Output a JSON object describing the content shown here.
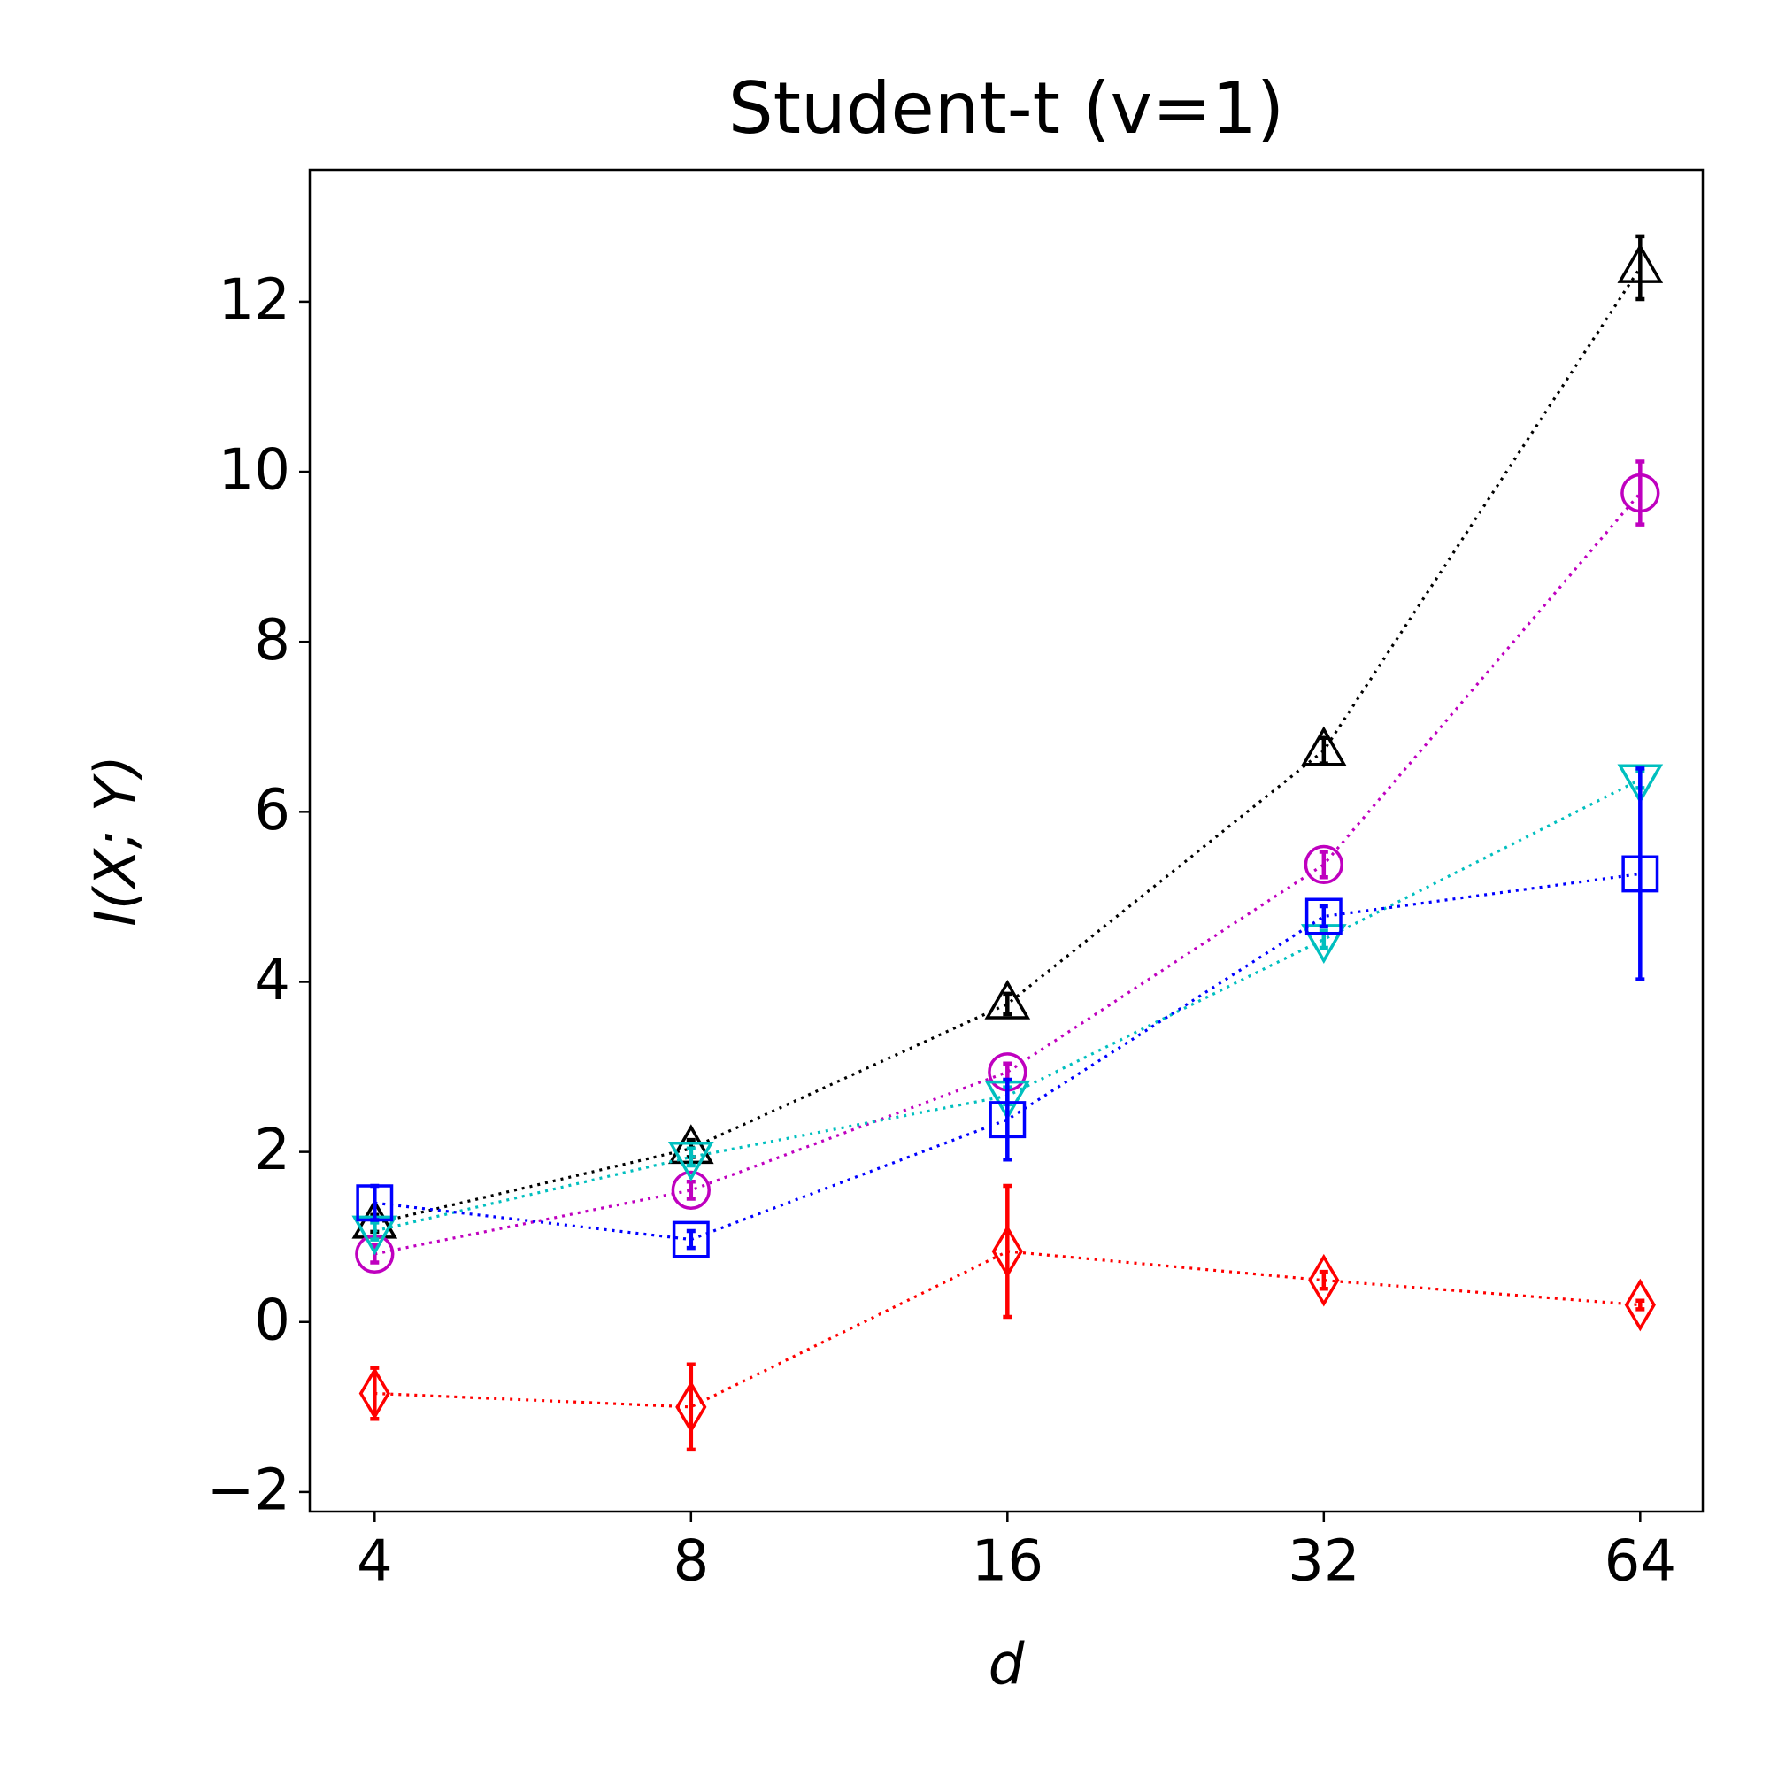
{
  "chart_data": {
    "type": "line",
    "title": "Student-t (v=1)",
    "x_label": "d",
    "y_label": "I(X; Y)",
    "x": [
      4,
      8,
      16,
      32,
      64
    ],
    "x_scale": "log2",
    "xlim": [
      3.47,
      73.4
    ],
    "xticks": [
      4,
      8,
      16,
      32,
      64
    ],
    "ylim": [
      -2.23,
      13.55
    ],
    "yticks": [
      {
        "value": -2,
        "label": "−2"
      },
      0,
      2,
      4,
      6,
      8,
      10,
      12
    ],
    "grid": false,
    "series": [
      {
        "color": "#000000",
        "marker": "triangle-up",
        "values": [
          1.16,
          2.04,
          3.74,
          6.72,
          12.4
        ],
        "errors": [
          0.1,
          0.1,
          0.12,
          0.15,
          0.37
        ]
      },
      {
        "color": "#bf00bf",
        "marker": "circle",
        "values": [
          0.8,
          1.55,
          2.94,
          5.38,
          9.75
        ],
        "errors": [
          0.1,
          0.1,
          0.1,
          0.15,
          0.37
        ]
      },
      {
        "color": "#00bfbf",
        "marker": "triangle-down",
        "values": [
          1.07,
          1.94,
          2.66,
          4.5,
          6.38
        ],
        "errors": [
          0.1,
          0.1,
          0.1,
          0.1,
          0.1
        ]
      },
      {
        "color": "#0000ff",
        "marker": "square",
        "values": [
          1.4,
          0.97,
          2.38,
          4.77,
          5.27
        ],
        "errors": [
          0.2,
          0.1,
          0.47,
          0.12,
          1.24
        ]
      },
      {
        "color": "#ff0000",
        "marker": "diamond",
        "values": [
          -0.84,
          -1.0,
          0.83,
          0.49,
          0.2
        ],
        "errors": [
          0.3,
          0.5,
          0.77,
          0.1,
          0.05
        ]
      }
    ]
  }
}
